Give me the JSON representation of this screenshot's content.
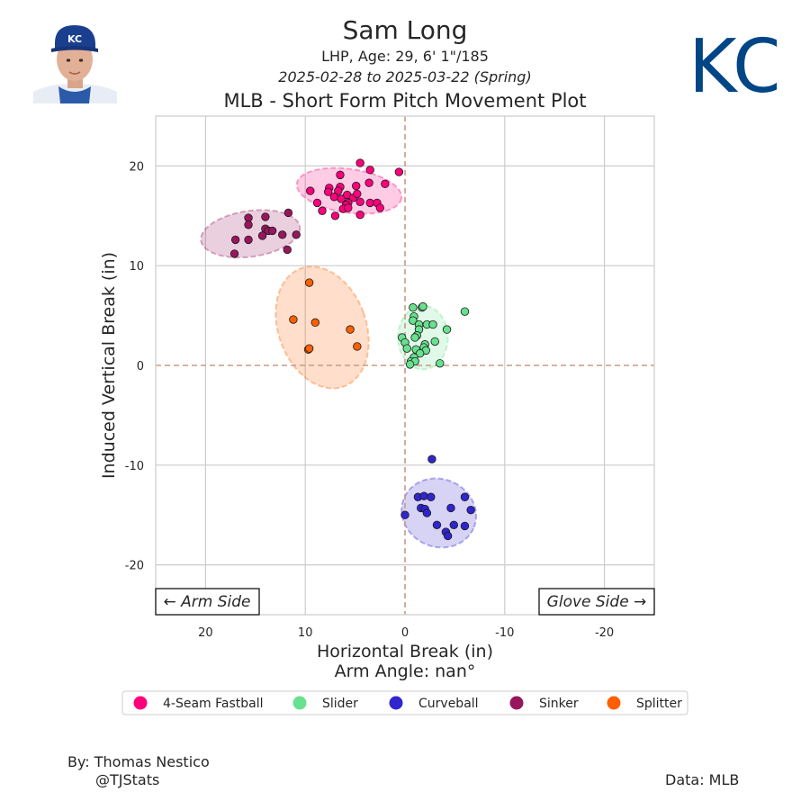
{
  "header": {
    "player_name": "Sam Long",
    "player_info": "LHP, Age: 29, 6' 1\"/185",
    "date_range": "2025-02-28 to 2025-03-22 (Spring)",
    "team_logo_text": "KC"
  },
  "footer": {
    "author": "By: Thomas Nestico",
    "handle": "@TJStats",
    "source": "Data: MLB"
  },
  "colors": {
    "four_seam": "#ff007d",
    "slider": "#67e18d",
    "curveball": "#3025ce",
    "sinker": "#98165d",
    "splitter": "#ff5f00",
    "team_blue": "#004687"
  },
  "chart_data": {
    "type": "scatter",
    "title": "MLB - Short Form Pitch Movement Plot",
    "xlabel": "Horizontal Break (in)",
    "xlabel2": "Arm Angle: nan°",
    "ylabel": "Induced Vertical Break (in)",
    "xlim": [
      25,
      -25
    ],
    "ylim": [
      -25,
      25
    ],
    "xticks": [
      20,
      10,
      0,
      -10,
      -20
    ],
    "yticks": [
      20,
      10,
      0,
      -10,
      -20
    ],
    "grid": true,
    "annotations": {
      "left": "← Arm Side",
      "right": "Glove Side →"
    },
    "legend_position": "bottom",
    "series": [
      {
        "name": "4-Seam Fastball",
        "color": "#ff007d",
        "ellipse": {
          "cx": 5.6,
          "cy": 17.5,
          "rx": 5.3,
          "ry": 2.2,
          "angle": 8
        },
        "points": [
          [
            4.5,
            20.3
          ],
          [
            3.5,
            19.6
          ],
          [
            0.6,
            19.4
          ],
          [
            6.5,
            19.1
          ],
          [
            2,
            18.2
          ],
          [
            4.9,
            18
          ],
          [
            3.6,
            18.3
          ],
          [
            6.5,
            17.9
          ],
          [
            7.6,
            17.8
          ],
          [
            9.5,
            17.5
          ],
          [
            7.7,
            17.4
          ],
          [
            6.7,
            17.5
          ],
          [
            5.8,
            17.1
          ],
          [
            7.1,
            16.9
          ],
          [
            5.2,
            16.8
          ],
          [
            4.8,
            17.2
          ],
          [
            6.4,
            16.7
          ],
          [
            4.5,
            16.4
          ],
          [
            5.7,
            16.3
          ],
          [
            3.5,
            16.3
          ],
          [
            2.8,
            16.3
          ],
          [
            2.5,
            15.8
          ],
          [
            5.9,
            16.1
          ],
          [
            6.2,
            15.7
          ],
          [
            5.7,
            15.8
          ],
          [
            8.8,
            16.3
          ],
          [
            7,
            15
          ],
          [
            8.3,
            15.5
          ],
          [
            4.5,
            15.1
          ]
        ]
      },
      {
        "name": "Slider",
        "color": "#67e18d",
        "ellipse": {
          "cx": -1.8,
          "cy": 2.8,
          "rx": 2.5,
          "ry": 3.2,
          "angle": 0
        },
        "points": [
          [
            -0.8,
            5.8
          ],
          [
            -1.7,
            5.8
          ],
          [
            -1.8,
            5.9
          ],
          [
            -6,
            5.4
          ],
          [
            -0.9,
            4.9
          ],
          [
            -0.8,
            4.5
          ],
          [
            -1.4,
            4.1
          ],
          [
            -2.2,
            4.1
          ],
          [
            -2.8,
            4.1
          ],
          [
            -1.4,
            3.6
          ],
          [
            -4.2,
            3.6
          ],
          [
            -1.2,
            3
          ],
          [
            -1,
            2.8
          ],
          [
            0.3,
            2.8
          ],
          [
            0,
            2.3
          ],
          [
            -3,
            2.4
          ],
          [
            -2,
            2.1
          ],
          [
            -1.9,
            1.8
          ],
          [
            -1.1,
            1.6
          ],
          [
            -2.1,
            1.5
          ],
          [
            -0.2,
            1.7
          ],
          [
            -1.5,
            1.2
          ],
          [
            -0.9,
            0.8
          ],
          [
            -0.6,
            0.4
          ],
          [
            -1,
            0.4
          ],
          [
            -3.5,
            0.2
          ],
          [
            -0.5,
            0.1
          ]
        ]
      },
      {
        "name": "Curveball",
        "color": "#3025ce",
        "ellipse": {
          "cx": -3.4,
          "cy": -14.8,
          "rx": 3.8,
          "ry": 3.4,
          "angle": 24
        },
        "points": [
          [
            -2.7,
            -9.4
          ],
          [
            -1.3,
            -13.2
          ],
          [
            -1.9,
            -13.1
          ],
          [
            -2.6,
            -13.2
          ],
          [
            -6,
            -13.2
          ],
          [
            -1.6,
            -14.3
          ],
          [
            -2,
            -14.4
          ],
          [
            -4.6,
            -14.3
          ],
          [
            -6.6,
            -14.5
          ],
          [
            -2.2,
            -14.8
          ],
          [
            0,
            -15
          ],
          [
            -3.2,
            -16
          ],
          [
            -4.9,
            -16
          ],
          [
            -6,
            -16.1
          ],
          [
            -4.1,
            -16.7
          ],
          [
            -4.3,
            -17.1
          ]
        ]
      },
      {
        "name": "Sinker",
        "color": "#98165d",
        "ellipse": {
          "cx": 15.5,
          "cy": 13.2,
          "rx": 5,
          "ry": 2.3,
          "angle": -8
        },
        "points": [
          [
            15.7,
            14.8
          ],
          [
            14,
            14.9
          ],
          [
            11.7,
            15.3
          ],
          [
            15.7,
            14.1
          ],
          [
            14,
            13.7
          ],
          [
            13.7,
            13.5
          ],
          [
            13.3,
            13.5
          ],
          [
            10.9,
            13.1
          ],
          [
            12.3,
            13.1
          ],
          [
            14.3,
            13
          ],
          [
            17,
            12.6
          ],
          [
            15.7,
            12.6
          ],
          [
            11.8,
            11.6
          ],
          [
            17.1,
            11.2
          ]
        ]
      },
      {
        "name": "Splitter",
        "color": "#ff5f00",
        "ellipse": {
          "cx": 8.3,
          "cy": 3.8,
          "rx": 4.4,
          "ry": 6.3,
          "angle": -20
        },
        "points": [
          [
            9.6,
            8.3
          ],
          [
            11.2,
            4.6
          ],
          [
            9,
            4.3
          ],
          [
            5.5,
            3.6
          ],
          [
            4.8,
            1.9
          ],
          [
            9.7,
            1.6
          ],
          [
            9.6,
            1.7
          ]
        ]
      }
    ]
  }
}
